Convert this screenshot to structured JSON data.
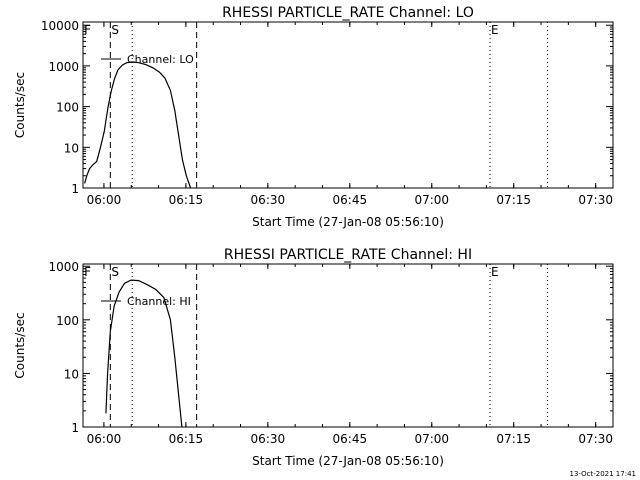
{
  "footer": {
    "timestamp": "13-Oct-2021 17:41"
  },
  "chart_data": [
    {
      "type": "line",
      "title": "RHESSI PARTICLE_RATE Channel: LO",
      "xlabel": "Start Time (27-Jan-08 05:56:10)",
      "ylabel": "Counts/sec",
      "x_unit": "minutes after 05:56:10",
      "xlim": [
        0,
        97
      ],
      "ylim": [
        1,
        12000
      ],
      "yscale": "log",
      "x_ticks": [
        {
          "label": "06:00",
          "value": 3.83
        },
        {
          "label": "06:15",
          "value": 18.83
        },
        {
          "label": "06:30",
          "value": 33.83
        },
        {
          "label": "06:45",
          "value": 48.83
        },
        {
          "label": "07:00",
          "value": 63.83
        },
        {
          "label": "07:15",
          "value": 78.83
        },
        {
          "label": "07:30",
          "value": 93.83
        }
      ],
      "y_ticks": [
        {
          "label": "1",
          "value": 1
        },
        {
          "label": "10",
          "value": 10
        },
        {
          "label": "100",
          "value": 100
        },
        {
          "label": "1000",
          "value": 1000
        },
        {
          "label": "10000",
          "value": 10000
        }
      ],
      "legend": {
        "label": "Channel: LO",
        "placement": "top-left"
      },
      "markers": [
        {
          "label": "S",
          "x": 5.0,
          "style": "dashed"
        },
        {
          "label": "",
          "x": 20.8,
          "style": "dashed"
        },
        {
          "label": "",
          "x": 9.0,
          "style": "dotted"
        },
        {
          "label": "E",
          "x": 74.5,
          "style": "dotted"
        },
        {
          "label": "",
          "x": 85.0,
          "style": "dotted"
        }
      ],
      "corner_labels": [
        {
          "label": "F",
          "x": 0.2
        }
      ],
      "series": [
        {
          "x": [
            0.3,
            0.7,
            1.2,
            1.8,
            2.5,
            3.2,
            3.9,
            4.6,
            5.2,
            5.8,
            6.4,
            7.2,
            8.0,
            9.0,
            10.2,
            11.5,
            12.8,
            14.0,
            15.0,
            16.0,
            16.8,
            17.5,
            18.2,
            18.9,
            19.7
          ],
          "y": [
            1.3,
            2.0,
            3.0,
            3.7,
            4.5,
            10,
            25,
            100,
            250,
            500,
            800,
            1050,
            1200,
            1250,
            1200,
            1080,
            900,
            700,
            500,
            250,
            80,
            20,
            5,
            2,
            1
          ]
        }
      ]
    },
    {
      "type": "line",
      "title": "RHESSI PARTICLE_RATE Channel: HI",
      "xlabel": "Start Time (27-Jan-08 05:56:10)",
      "ylabel": "Counts/sec",
      "x_unit": "minutes after 05:56:10",
      "xlim": [
        0,
        97
      ],
      "ylim": [
        1,
        1100
      ],
      "yscale": "log",
      "x_ticks": [
        {
          "label": "06:00",
          "value": 3.83
        },
        {
          "label": "06:15",
          "value": 18.83
        },
        {
          "label": "06:30",
          "value": 33.83
        },
        {
          "label": "06:45",
          "value": 48.83
        },
        {
          "label": "07:00",
          "value": 63.83
        },
        {
          "label": "07:15",
          "value": 78.83
        },
        {
          "label": "07:30",
          "value": 93.83
        }
      ],
      "y_ticks": [
        {
          "label": "1",
          "value": 1
        },
        {
          "label": "10",
          "value": 10
        },
        {
          "label": "100",
          "value": 100
        },
        {
          "label": "1000",
          "value": 1000
        }
      ],
      "legend": {
        "label": "Channel: HI",
        "placement": "top-left"
      },
      "markers": [
        {
          "label": "S",
          "x": 5.0,
          "style": "dashed"
        },
        {
          "label": "",
          "x": 20.8,
          "style": "dashed"
        },
        {
          "label": "",
          "x": 9.0,
          "style": "dotted"
        },
        {
          "label": "E",
          "x": 74.5,
          "style": "dotted"
        },
        {
          "label": "",
          "x": 85.0,
          "style": "dotted"
        }
      ],
      "corner_labels": [
        {
          "label": "F",
          "x": 0.2
        }
      ],
      "series": [
        {
          "x": [
            4.2,
            4.5,
            5.0,
            5.7,
            6.6,
            7.6,
            8.8,
            10.2,
            11.8,
            13.3,
            14.8,
            16.0,
            16.8,
            17.5,
            18.1
          ],
          "y": [
            1.8,
            10,
            60,
            180,
            330,
            480,
            550,
            540,
            450,
            370,
            260,
            100,
            20,
            4,
            1
          ]
        }
      ]
    }
  ]
}
